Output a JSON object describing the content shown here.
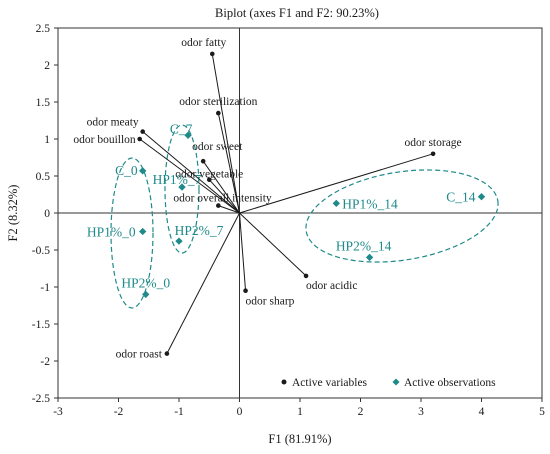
{
  "colors": {
    "variables": "#1a1a1a",
    "observations": "#1f8a8a",
    "frame": "#333333"
  },
  "chart_data": {
    "type": "scatter",
    "title": "Biplot (axes F1 and F2: 90.23%)",
    "xlabel": "F1 (81.91%)",
    "ylabel": "F2 (8.32%)",
    "xlim": [
      -3,
      5
    ],
    "ylim": [
      -2.5,
      2.5
    ],
    "xticks": [
      -3,
      -2,
      -1,
      0,
      1,
      2,
      3,
      4,
      5
    ],
    "yticks": [
      -2.5,
      -2,
      -1.5,
      -1,
      -0.5,
      0,
      0.5,
      1,
      1.5,
      2,
      2.5
    ],
    "grid": false,
    "legend_position": "bottom-right",
    "series": [
      {
        "name": "Active variables",
        "marker": "circle",
        "drawn_as": "vectors from origin",
        "points": [
          {
            "label": "odor fatty",
            "x": -0.45,
            "y": 2.15
          },
          {
            "label": "odor sterilization",
            "x": -0.35,
            "y": 1.35
          },
          {
            "label": "odor meaty",
            "x": -1.6,
            "y": 1.1
          },
          {
            "label": "odor bouillon",
            "x": -1.65,
            "y": 1.0
          },
          {
            "label": "odor sweet",
            "x": -0.6,
            "y": 0.7
          },
          {
            "label": "odor vegetable",
            "x": -0.5,
            "y": 0.45
          },
          {
            "label": "odor overall intensity",
            "x": -0.35,
            "y": 0.1
          },
          {
            "label": "odor storage",
            "x": 3.2,
            "y": 0.8
          },
          {
            "label": "odor acidic",
            "x": 1.1,
            "y": -0.85
          },
          {
            "label": "odor sharp",
            "x": 0.1,
            "y": -1.05
          },
          {
            "label": "odor roast",
            "x": -1.2,
            "y": -1.9
          }
        ]
      },
      {
        "name": "Active observations",
        "marker": "diamond",
        "points": [
          {
            "label": "C_0",
            "x": -1.6,
            "y": 0.57
          },
          {
            "label": "HP1%_0",
            "x": -1.6,
            "y": -0.25
          },
          {
            "label": "HP2%_0",
            "x": -1.55,
            "y": -1.1
          },
          {
            "label": "C_7",
            "x": -0.85,
            "y": 1.05
          },
          {
            "label": "HP1%_7",
            "x": -0.95,
            "y": 0.35
          },
          {
            "label": "HP2%_7",
            "x": -1.0,
            "y": -0.38
          },
          {
            "label": "HP1%_14",
            "x": 1.6,
            "y": 0.13
          },
          {
            "label": "C_14",
            "x": 4.0,
            "y": 0.22
          },
          {
            "label": "HP2%_14",
            "x": 2.15,
            "y": -0.6
          }
        ]
      }
    ]
  }
}
